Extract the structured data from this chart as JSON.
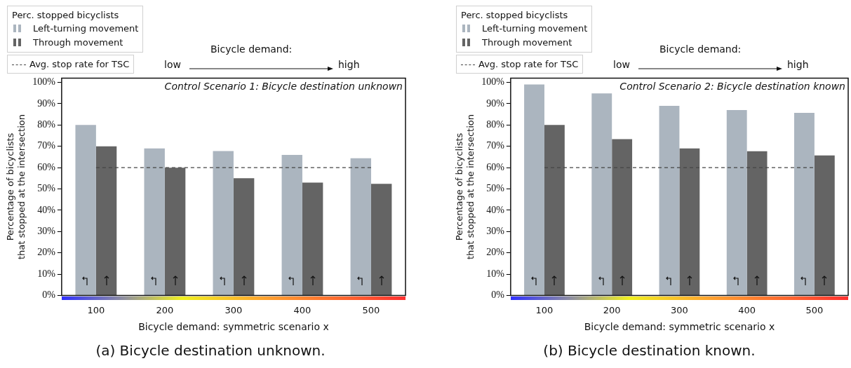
{
  "chart_data": [
    {
      "type": "bar",
      "title": "Control Scenario 1: Bicycle destination unknown",
      "xlabel": "Bicycle demand: symmetric scenario x",
      "ylabel": "Percentage of bicyclists\nthat stopped at the intersection",
      "legend_title": "Perc. stopped bicyclists",
      "categories": [
        "100",
        "200",
        "300",
        "400",
        "500"
      ],
      "series": [
        {
          "name": "Left-turning movement",
          "color": "#abb5bf",
          "values": [
            80,
            69,
            67.8,
            66,
            64.4
          ]
        },
        {
          "name": "Through movement",
          "color": "#646464",
          "values": [
            70,
            60,
            55,
            53,
            52.4
          ]
        }
      ],
      "ylim": [
        0,
        102
      ],
      "yticks": [
        {
          "value": 0,
          "label": "0%"
        },
        {
          "value": 10,
          "label": "10%"
        },
        {
          "value": 20,
          "label": "20%"
        },
        {
          "value": 30,
          "label": "30%"
        },
        {
          "value": 40,
          "label": "40%"
        },
        {
          "value": 50,
          "label": "50%"
        },
        {
          "value": 60,
          "label": "60%"
        },
        {
          "value": 70,
          "label": "70%"
        },
        {
          "value": 80,
          "label": "80%"
        },
        {
          "value": 90,
          "label": "90%"
        },
        {
          "value": 100,
          "label": "100%"
        }
      ],
      "ref_lines": [
        {
          "axis": "y",
          "value": 60,
          "label": "Avg. stop rate for TSC",
          "color": "#444444",
          "line_style": "dashed"
        }
      ],
      "annotations": [
        "Bicycle demand:",
        "low",
        "high",
        "(a) Bicycle destination unknown."
      ],
      "grid": false,
      "legend": "top left"
    },
    {
      "type": "bar",
      "title": "Control Scenario 2: Bicycle destination known",
      "xlabel": "Bicycle demand: symmetric scenario x",
      "ylabel": "Percentage of bicyclists\nthat stopped at the intersection",
      "legend_title": "Perc. stopped bicyclists",
      "categories": [
        "100",
        "200",
        "300",
        "400",
        "500"
      ],
      "series": [
        {
          "name": "Left-turning movement",
          "color": "#abb5bf",
          "values": [
            99,
            94.8,
            89,
            87,
            85.7
          ]
        },
        {
          "name": "Through movement",
          "color": "#646464",
          "values": [
            80,
            73.4,
            69,
            67.7,
            65.7
          ]
        }
      ],
      "ylim": [
        0,
        102
      ],
      "yticks": [
        {
          "value": 0,
          "label": "0%"
        },
        {
          "value": 10,
          "label": "10%"
        },
        {
          "value": 20,
          "label": "20%"
        },
        {
          "value": 30,
          "label": "30%"
        },
        {
          "value": 40,
          "label": "40%"
        },
        {
          "value": 50,
          "label": "50%"
        },
        {
          "value": 60,
          "label": "60%"
        },
        {
          "value": 70,
          "label": "70%"
        },
        {
          "value": 80,
          "label": "80%"
        },
        {
          "value": 90,
          "label": "90%"
        },
        {
          "value": 100,
          "label": "100%"
        }
      ],
      "ref_lines": [
        {
          "axis": "y",
          "value": 60,
          "label": "Avg. stop rate for TSC",
          "color": "#444444",
          "line_style": "dashed"
        }
      ],
      "annotations": [
        "Bicycle demand:",
        "low",
        "high",
        "(b) Bicycle destination known."
      ],
      "grid": false,
      "legend": "top left"
    }
  ]
}
